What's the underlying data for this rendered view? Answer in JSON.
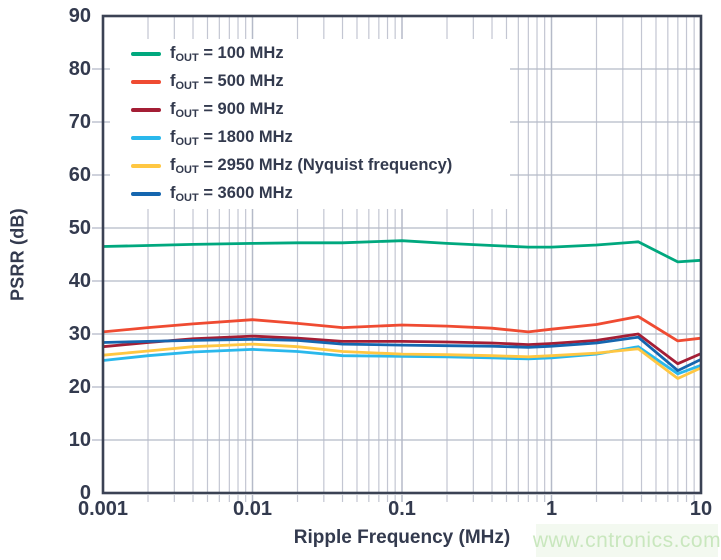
{
  "chart_data": {
    "type": "line",
    "title": "",
    "xlabel": "Ripple Frequency (MHz)",
    "ylabel": "PSRR (dB)",
    "x_scale": "log",
    "xlim": [
      0.001,
      10
    ],
    "ylim": [
      0,
      90
    ],
    "y_tick_step": 10,
    "x_tick_labels": [
      "0.001",
      "0.01",
      "0.1",
      "1",
      "10"
    ],
    "x_tick_values": [
      0.001,
      0.01,
      0.1,
      1,
      10
    ],
    "grid": true,
    "legend_position": "top-left",
    "x": [
      0.001,
      0.002,
      0.004,
      0.01,
      0.02,
      0.04,
      0.1,
      0.2,
      0.4,
      0.7,
      1,
      2,
      3.8,
      7,
      10
    ],
    "series": [
      {
        "name": "fOUT = 100 MHz",
        "f": "f",
        "sub": "OUT",
        "rest": " = 100 MHz",
        "color": "#00A87E",
        "values": [
          46.5,
          46.7,
          46.9,
          47.1,
          47.2,
          47.2,
          47.6,
          47.1,
          46.7,
          46.4,
          46.4,
          46.8,
          47.4,
          43.6,
          43.9
        ]
      },
      {
        "name": "fOUT = 500 MHz",
        "f": "f",
        "sub": "OUT",
        "rest": " = 500 MHz",
        "color": "#EF4B32",
        "values": [
          30.4,
          31.2,
          31.9,
          32.7,
          32.0,
          31.2,
          31.7,
          31.5,
          31.1,
          30.4,
          30.9,
          31.8,
          33.3,
          28.7,
          29.2
        ]
      },
      {
        "name": "fOUT = 900 MHz",
        "f": "f",
        "sub": "OUT",
        "rest": " = 900 MHz",
        "color": "#A41E35",
        "values": [
          27.6,
          28.4,
          29.1,
          29.6,
          29.2,
          28.6,
          28.6,
          28.5,
          28.3,
          28.0,
          28.2,
          28.8,
          30.0,
          24.4,
          26.3
        ]
      },
      {
        "name": "fOUT = 1800 MHz",
        "f": "f",
        "sub": "OUT",
        "rest": " = 1800 MHz",
        "color": "#2AB8EC",
        "values": [
          25.0,
          25.9,
          26.6,
          27.1,
          26.7,
          25.9,
          25.8,
          25.7,
          25.5,
          25.3,
          25.5,
          26.2,
          27.6,
          22.5,
          24.1
        ]
      },
      {
        "name": "fOUT = 2950 MHz (Nyquist frequency)",
        "f": "f",
        "sub": "OUT",
        "rest": " = 2950 MHz (Nyquist frequency)",
        "color": "#FFC742",
        "values": [
          26.0,
          26.8,
          27.6,
          28.1,
          27.6,
          26.7,
          26.2,
          26.1,
          25.9,
          25.7,
          25.9,
          26.4,
          27.2,
          21.6,
          23.6
        ]
      },
      {
        "name": "fOUT = 3600 MHz",
        "f": "f",
        "sub": "OUT",
        "rest": " = 3600 MHz",
        "color": "#1566AF",
        "values": [
          28.4,
          28.6,
          28.8,
          29.0,
          28.8,
          28.1,
          27.9,
          27.8,
          27.7,
          27.5,
          27.7,
          28.3,
          29.4,
          23.1,
          25.2
        ]
      }
    ]
  },
  "watermark": {
    "text": "www.cntronics.com",
    "color": "#C9E7BE"
  },
  "colors": {
    "axis": "#3B4254",
    "grid_minor": "#C3C6D2",
    "grid_major": "#B5BAC8",
    "text": "#333A4E",
    "background": "#FFFFFF"
  }
}
